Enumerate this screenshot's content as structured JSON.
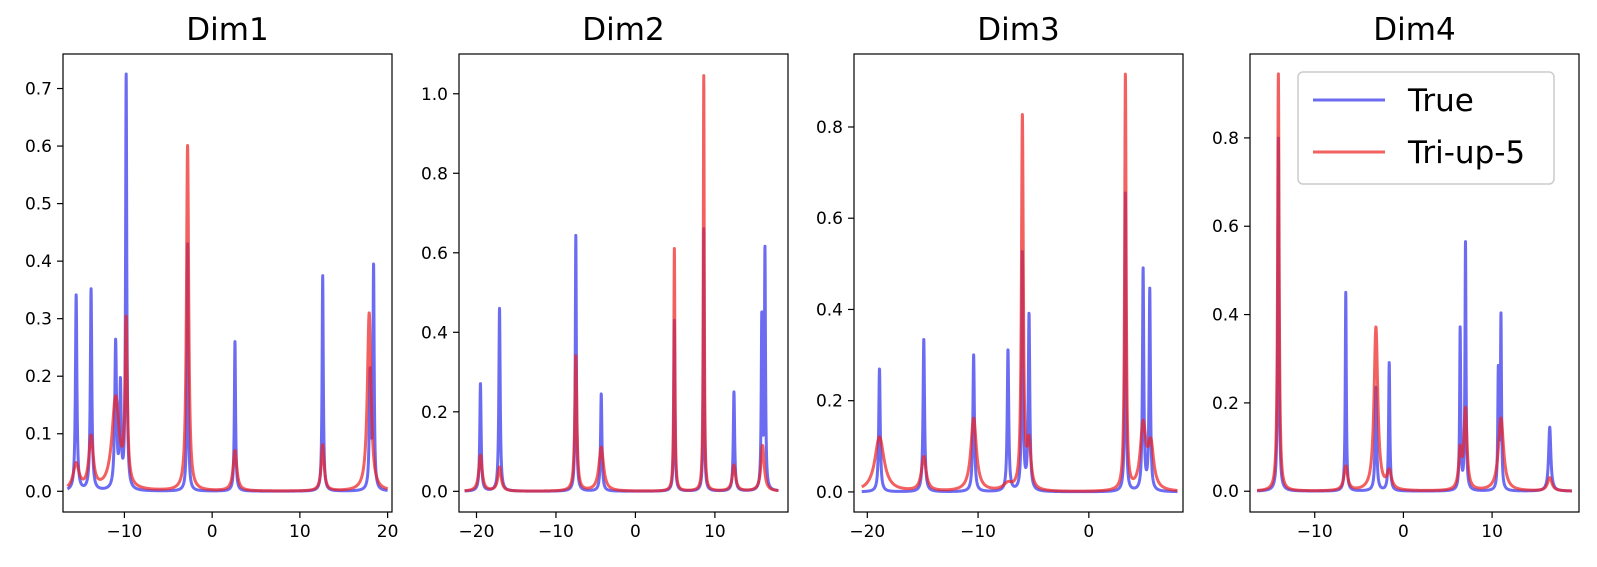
{
  "colors": {
    "true": "#3333ee",
    "pred": "#ee2222"
  },
  "legend": {
    "location": "upper right of last panel",
    "entries": [
      "True",
      "Tri-up-5"
    ]
  },
  "chart_data": [
    {
      "type": "line",
      "title": "Dim1",
      "xlim": [
        -17,
        20.5
      ],
      "ylim": [
        -0.036,
        0.76
      ],
      "xticks": [
        -10,
        0,
        10,
        20
      ],
      "yticks": [
        0.0,
        0.1,
        0.2,
        0.3,
        0.4,
        0.5,
        0.6,
        0.7
      ],
      "x_range": [
        -16.5,
        20
      ],
      "series": [
        {
          "name": "True",
          "peaks": [
            [
              -15.5,
              0.34,
              0.1
            ],
            [
              -13.8,
              0.35,
              0.1
            ],
            [
              -11.0,
              0.255,
              0.12
            ],
            [
              -10.45,
              0.175,
              0.1
            ],
            [
              -9.8,
              0.72,
              0.08
            ],
            [
              -2.8,
              0.43,
              0.08
            ],
            [
              2.6,
              0.26,
              0.08
            ],
            [
              12.6,
              0.375,
              0.08
            ],
            [
              18.0,
              0.2,
              0.1
            ],
            [
              18.4,
              0.385,
              0.08
            ]
          ]
        },
        {
          "name": "Tri-up-5",
          "peaks": [
            [
              -15.5,
              0.045,
              0.4
            ],
            [
              -13.8,
              0.09,
              0.3
            ],
            [
              -11.0,
              0.16,
              0.5
            ],
            [
              -9.8,
              0.28,
              0.15
            ],
            [
              -2.8,
              0.6,
              0.15
            ],
            [
              2.6,
              0.07,
              0.25
            ],
            [
              12.6,
              0.08,
              0.2
            ],
            [
              17.9,
              0.31,
              0.25
            ]
          ]
        }
      ]
    },
    {
      "type": "line",
      "title": "Dim2",
      "xlim": [
        -22.2,
        19.2
      ],
      "ylim": [
        -0.052,
        1.1
      ],
      "xticks": [
        -20,
        -10,
        0,
        10
      ],
      "yticks": [
        0.0,
        0.2,
        0.4,
        0.6,
        0.8,
        1.0
      ],
      "x_range": [
        -21.5,
        18
      ],
      "series": [
        {
          "name": "True",
          "peaks": [
            [
              -19.5,
              0.27,
              0.1
            ],
            [
              -17.1,
              0.46,
              0.1
            ],
            [
              -7.5,
              0.645,
              0.08
            ],
            [
              -4.3,
              0.245,
              0.1
            ],
            [
              4.9,
              0.43,
              0.08
            ],
            [
              8.6,
              0.66,
              0.07
            ],
            [
              12.4,
              0.25,
              0.1
            ],
            [
              15.9,
              0.43,
              0.08
            ],
            [
              16.3,
              0.6,
              0.08
            ]
          ]
        },
        {
          "name": "Tri-up-5",
          "peaks": [
            [
              -19.5,
              0.09,
              0.25
            ],
            [
              -17.1,
              0.06,
              0.25
            ],
            [
              -7.5,
              0.34,
              0.15
            ],
            [
              -4.3,
              0.11,
              0.35
            ],
            [
              4.9,
              0.61,
              0.08
            ],
            [
              8.6,
              1.045,
              0.07
            ],
            [
              12.4,
              0.065,
              0.25
            ],
            [
              16.0,
              0.115,
              0.25
            ]
          ]
        }
      ]
    },
    {
      "type": "line",
      "title": "Dim3",
      "xlim": [
        -21.2,
        8.5
      ],
      "ylim": [
        -0.044,
        0.96
      ],
      "xticks": [
        -20,
        -10,
        0
      ],
      "yticks": [
        0.0,
        0.2,
        0.4,
        0.6,
        0.8
      ],
      "x_range": [
        -20.5,
        8
      ],
      "series": [
        {
          "name": "True",
          "peaks": [
            [
              -18.9,
              0.27,
              0.08
            ],
            [
              -14.9,
              0.335,
              0.08
            ],
            [
              -10.4,
              0.3,
              0.08
            ],
            [
              -7.3,
              0.31,
              0.08
            ],
            [
              -6.0,
              0.52,
              0.07
            ],
            [
              -5.4,
              0.385,
              0.08
            ],
            [
              3.3,
              0.655,
              0.06
            ],
            [
              4.9,
              0.485,
              0.07
            ],
            [
              5.5,
              0.44,
              0.07
            ]
          ]
        },
        {
          "name": "Tri-up-5",
          "peaks": [
            [
              -18.9,
              0.12,
              0.5
            ],
            [
              -14.9,
              0.075,
              0.25
            ],
            [
              -10.4,
              0.16,
              0.3
            ],
            [
              -7.3,
              0.015,
              0.5
            ],
            [
              -6.0,
              0.815,
              0.1
            ],
            [
              -5.4,
              0.1,
              0.2
            ],
            [
              3.3,
              0.91,
              0.08
            ],
            [
              4.9,
              0.14,
              0.3
            ],
            [
              5.6,
              0.095,
              0.3
            ]
          ]
        }
      ]
    },
    {
      "type": "line",
      "title": "Dim4",
      "xlim": [
        -17.3,
        19.8
      ],
      "ylim": [
        -0.047,
        0.99
      ],
      "xticks": [
        -10,
        0,
        10
      ],
      "yticks": [
        0.0,
        0.2,
        0.4,
        0.6,
        0.8
      ],
      "x_range": [
        -16.5,
        19
      ],
      "series": [
        {
          "name": "True",
          "peaks": [
            [
              -14.1,
              0.8,
              0.08
            ],
            [
              -6.5,
              0.45,
              0.07
            ],
            [
              -3.1,
              0.235,
              0.1
            ],
            [
              -1.6,
              0.29,
              0.08
            ],
            [
              6.4,
              0.365,
              0.07
            ],
            [
              7.0,
              0.56,
              0.07
            ],
            [
              10.7,
              0.265,
              0.07
            ],
            [
              11.0,
              0.39,
              0.07
            ],
            [
              16.5,
              0.145,
              0.15
            ]
          ]
        },
        {
          "name": "Tri-up-5",
          "peaks": [
            [
              -14.1,
              0.945,
              0.1
            ],
            [
              -6.5,
              0.055,
              0.25
            ],
            [
              -3.1,
              0.37,
              0.25
            ],
            [
              -1.6,
              0.04,
              0.3
            ],
            [
              6.4,
              0.085,
              0.2
            ],
            [
              7.0,
              0.18,
              0.2
            ],
            [
              11.0,
              0.165,
              0.35
            ],
            [
              16.5,
              0.03,
              0.3
            ]
          ]
        }
      ]
    }
  ]
}
